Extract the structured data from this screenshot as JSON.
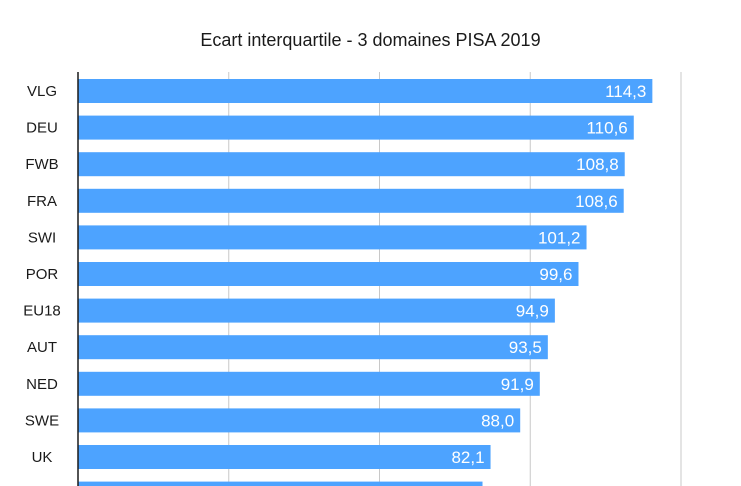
{
  "chart_data": {
    "type": "bar",
    "orientation": "horizontal",
    "title": "Ecart interquartile - 3 domaines PISA 2019",
    "categories": [
      "VLG",
      "DEU",
      "FWB",
      "FRA",
      "SWI",
      "POR",
      "EU18",
      "AUT",
      "NED",
      "SWE",
      "UK"
    ],
    "values": [
      114.3,
      110.6,
      108.8,
      108.6,
      101.2,
      99.6,
      94.9,
      93.5,
      91.9,
      88.0,
      82.1
    ],
    "value_labels": [
      "114,3",
      "110,6",
      "108,8",
      "108,6",
      "101,2",
      "99,6",
      "94,9",
      "93,5",
      "91,9",
      "88,0",
      "82,1"
    ],
    "partial_bar_value": 80.5,
    "xlim": [
      0,
      120
    ],
    "grid": true,
    "bar_color": "#4da3ff",
    "axis_color": "#1a1a1a",
    "grid_color": "#c8c8c8"
  }
}
